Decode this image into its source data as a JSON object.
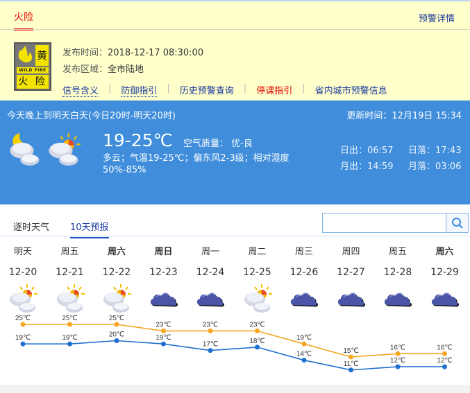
{
  "warning": {
    "tab": "火险",
    "detail_link": "预警详情",
    "badge": {
      "level": "黄",
      "en": "WILD FIRE",
      "name": "火 险",
      "color": "#f2e300"
    },
    "publish_time_label": "发布时间：",
    "publish_time": "2018-12-17 08:30:00",
    "area_label": "发布区域：",
    "area": "全市陆地",
    "links": [
      "信号含义",
      "防御指引",
      "历史预警查询",
      "停课指引",
      "省内城市预警信息"
    ]
  },
  "now": {
    "period": "今天晚上到明天白天(今日20时-明天20时)",
    "update": "更新时间：12月19日 15:34",
    "icons": [
      "night-partly-cloudy-icon",
      "partly-cloudy-icon"
    ],
    "temp": "19-25℃",
    "air_quality": "空气质量： 优-良",
    "desc": "多云；气温19-25℃；偏东风2-3级；相对湿度50%-85%",
    "sunrise": "日出：06:57",
    "sunset": "日落：17:43",
    "moonrise": "月出：14:59",
    "moonset": "月落：03:06",
    "bg": "#3f8ddb"
  },
  "tabs": [
    "逐时天气",
    "10天预报"
  ],
  "active_tab": 1,
  "search": {
    "value": "",
    "icon": "search-icon"
  },
  "forecast": [
    {
      "day": "明天",
      "date": "12-20",
      "icon": "partly-cloudy",
      "bold": false
    },
    {
      "day": "周五",
      "date": "12-21",
      "icon": "partly-cloudy",
      "bold": false
    },
    {
      "day": "周六",
      "date": "12-22",
      "icon": "partly-cloudy",
      "bold": true
    },
    {
      "day": "周日",
      "date": "12-23",
      "icon": "cloudy",
      "bold": true
    },
    {
      "day": "周一",
      "date": "12-24",
      "icon": "cloudy",
      "bold": false
    },
    {
      "day": "周二",
      "date": "12-25",
      "icon": "partly-cloudy",
      "bold": false
    },
    {
      "day": "周三",
      "date": "12-26",
      "icon": "cloudy",
      "bold": false
    },
    {
      "day": "周四",
      "date": "12-27",
      "icon": "cloudy",
      "bold": false
    },
    {
      "day": "周五",
      "date": "12-28",
      "icon": "cloudy",
      "bold": false
    },
    {
      "day": "周六",
      "date": "12-29",
      "icon": "cloudy",
      "bold": true
    }
  ],
  "chart_data": {
    "type": "line",
    "categories": [
      "12-20",
      "12-21",
      "12-22",
      "12-23",
      "12-24",
      "12-25",
      "12-26",
      "12-27",
      "12-28",
      "12-29"
    ],
    "unit": "℃",
    "series": [
      {
        "values": [
          25,
          25,
          25,
          23,
          23,
          23,
          19,
          15,
          16,
          16
        ],
        "color": "#f5a623"
      },
      {
        "values": [
          19,
          19,
          20,
          19,
          17,
          18,
          14,
          11,
          12,
          12
        ],
        "color": "#1f6fd1"
      }
    ]
  }
}
